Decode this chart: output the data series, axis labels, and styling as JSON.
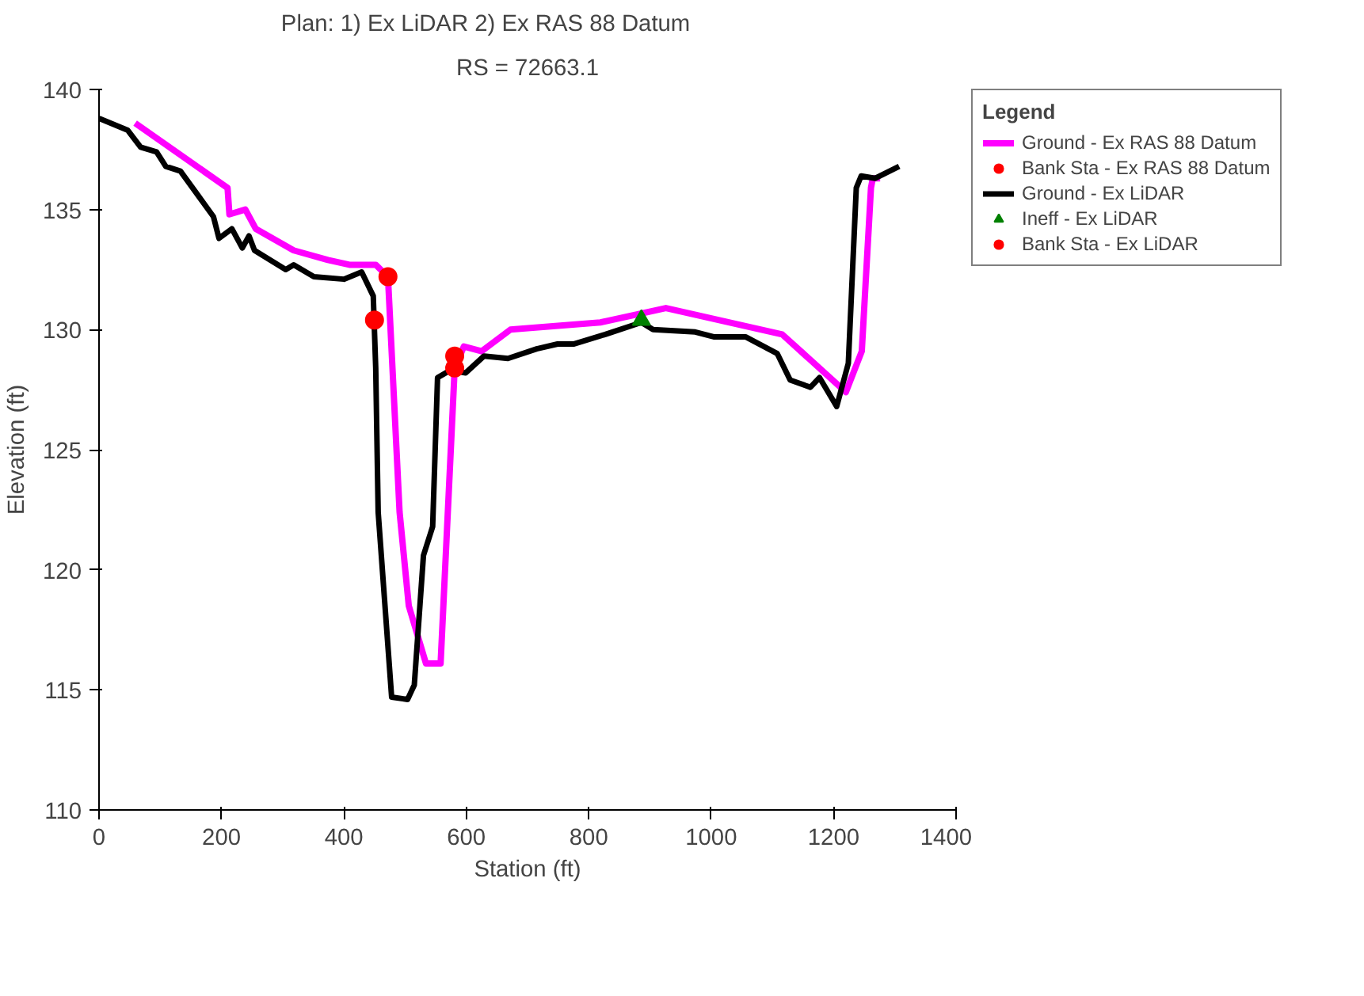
{
  "chart_data": {
    "type": "line",
    "title": "Plan:     1) Ex LiDAR          2) Ex RAS 88 Datum",
    "subtitle": "RS = 72663.1",
    "xlabel": "Station (ft)",
    "ylabel": "Elevation (ft)",
    "legend_title": "Legend",
    "legend": "right",
    "grid": false,
    "xlim": [
      0,
      1400
    ],
    "xticks": [
      0,
      200,
      400,
      600,
      800,
      1000,
      1200,
      1400
    ],
    "ylim": [
      110,
      140
    ],
    "yticks": [
      110,
      115,
      120,
      125,
      130,
      135,
      140
    ],
    "series": [
      {
        "name": "Ground - Ex RAS 88 Datum",
        "marker": "none",
        "color": "#ff00ff",
        "x": [
          59,
          210,
          213,
          239,
          256,
          318,
          374,
          409,
          452,
          472,
          491,
          506,
          534,
          558,
          581,
          596,
          625,
          672,
          819,
          926,
          1116,
          1220,
          1246,
          1261,
          1264,
          1276
        ],
        "values": [
          138.6,
          135.9,
          134.8,
          135.0,
          134.2,
          133.3,
          132.9,
          132.7,
          132.7,
          132.2,
          122.4,
          118.5,
          116.1,
          116.1,
          128.4,
          129.3,
          129.1,
          130.0,
          130.3,
          130.9,
          129.8,
          127.4,
          129.1,
          135.9,
          136.3,
          136.3
        ]
      },
      {
        "name": "Bank Sta - Ex RAS 88 Datum",
        "type": "scatter",
        "marker": "circle",
        "color": "#ff0000",
        "x": [
          472,
          581
        ],
        "values": [
          132.2,
          128.9
        ]
      },
      {
        "name": "Ground - Ex LiDAR",
        "marker": "none",
        "color": "#000000",
        "x": [
          0,
          47,
          68,
          94,
          109,
          133,
          187,
          196,
          217,
          234,
          245,
          254,
          305,
          318,
          351,
          400,
          429,
          448,
          452,
          456,
          478,
          504,
          515,
          530,
          545,
          553,
          573,
          599,
          629,
          668,
          715,
          749,
          775,
          827,
          886,
          905,
          974,
          1004,
          1056,
          1108,
          1129,
          1162,
          1177,
          1205,
          1224,
          1237,
          1245,
          1268,
          1307
        ],
        "values": [
          138.8,
          138.3,
          137.6,
          137.4,
          136.8,
          136.6,
          134.7,
          133.8,
          134.2,
          133.4,
          133.9,
          133.3,
          132.5,
          132.7,
          132.2,
          132.1,
          132.4,
          131.4,
          128.4,
          122.4,
          114.7,
          114.6,
          115.2,
          120.6,
          121.8,
          128.0,
          128.3,
          128.2,
          128.9,
          128.8,
          129.2,
          129.4,
          129.4,
          129.8,
          130.3,
          130.0,
          129.9,
          129.7,
          129.7,
          129.0,
          127.9,
          127.6,
          128.0,
          126.8,
          128.6,
          135.9,
          136.4,
          136.3,
          136.8
        ]
      },
      {
        "name": "Ineff - Ex LiDAR",
        "type": "scatter",
        "marker": "triangle",
        "color": "#008000",
        "x": [
          886
        ],
        "values": [
          130.4
        ]
      },
      {
        "name": "Bank Sta - Ex LiDAR",
        "type": "scatter",
        "marker": "circle",
        "color": "#ff0000",
        "x": [
          450,
          581
        ],
        "values": [
          130.4,
          128.4
        ]
      }
    ]
  }
}
